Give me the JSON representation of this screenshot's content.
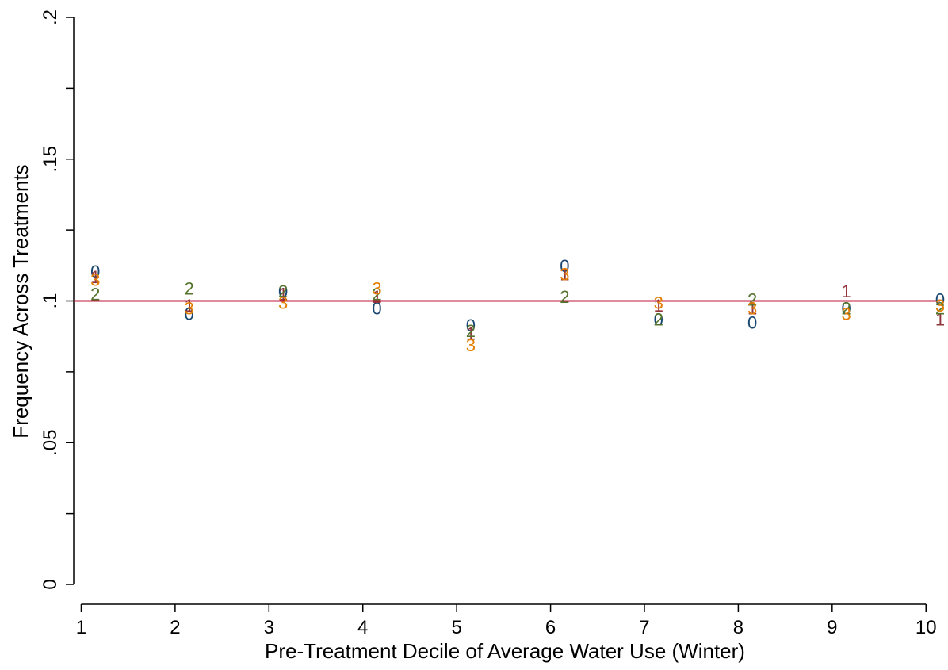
{
  "chart_data": {
    "type": "scatter",
    "title": "",
    "xlabel": "Pre-Treatment Decile of Average Water Use (Winter)",
    "ylabel": "Frequency Across Treatments",
    "xlim": [
      0.92,
      10.15
    ],
    "ylim": [
      0,
      0.2
    ],
    "x_ticks": [
      1,
      2,
      3,
      4,
      5,
      6,
      7,
      8,
      9,
      10
    ],
    "y_ticks": [
      0,
      0.05,
      0.1,
      0.15,
      0.2
    ],
    "y_tick_labels": [
      "0",
      ".05",
      ".1",
      ".15",
      ".2"
    ],
    "x_tick_labels": [
      "1",
      "2",
      "3",
      "4",
      "5",
      "6",
      "7",
      "8",
      "9",
      "10"
    ],
    "grid": false,
    "reference_line": {
      "y": 0.1,
      "color": "#c0143c"
    },
    "x_offset": 0.15,
    "series": [
      {
        "marker": "0",
        "color": "#1a476f",
        "values": [
          0.1105,
          0.0955,
          0.1035,
          0.0975,
          0.0915,
          0.1125,
          0.0935,
          0.0925,
          0.0975,
          0.1005
        ]
      },
      {
        "marker": "1",
        "color": "#90353b",
        "values": [
          0.1085,
          0.0985,
          0.1025,
          0.1015,
          0.0885,
          0.1095,
          0.0985,
          0.0975,
          0.1035,
          0.0935
        ]
      },
      {
        "marker": "2",
        "color": "#55752f",
        "values": [
          0.1025,
          0.1045,
          0.1035,
          0.1025,
          0.0895,
          0.1015,
          0.0935,
          0.1005,
          0.0975,
          0.0975
        ]
      },
      {
        "marker": "3",
        "color": "#e37e00",
        "values": [
          0.1075,
          0.0975,
          0.0995,
          0.1045,
          0.0845,
          0.1095,
          0.0995,
          0.0975,
          0.0955,
          0.0985
        ]
      }
    ]
  }
}
